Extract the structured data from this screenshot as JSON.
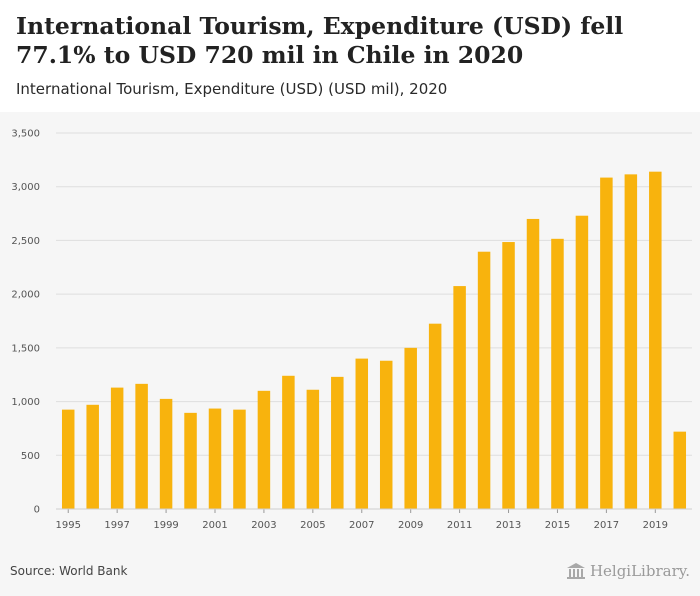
{
  "header": {
    "title": "International Tourism, Expenditure (USD) fell 77.1% to USD 720 mil in Chile in 2020",
    "subtitle": "International Tourism, Expenditure (USD) (USD mil), 2020"
  },
  "footer": {
    "source": "Source: World Bank",
    "logo": "HelgiLibrary."
  },
  "colors": {
    "bar": "#f8b30d",
    "grid": "#dedede",
    "axis_text": "#555555"
  },
  "chart_data": {
    "type": "bar",
    "title": "International Tourism, Expenditure (USD) fell 77.1% to USD 720 mil in Chile in 2020",
    "subtitle": "International Tourism, Expenditure (USD) (USD mil), 2020",
    "xlabel": "",
    "ylabel": "",
    "ylim": [
      0,
      3500
    ],
    "yticks": [
      0,
      500,
      1000,
      1500,
      2000,
      2500,
      3000,
      3500
    ],
    "ytick_labels": [
      "0",
      "500",
      "1,000",
      "1,500",
      "2,000",
      "2,500",
      "3,000",
      "3,500"
    ],
    "grid": true,
    "categories": [
      1995,
      1996,
      1997,
      1998,
      1999,
      2000,
      2001,
      2002,
      2003,
      2004,
      2005,
      2006,
      2007,
      2008,
      2009,
      2010,
      2011,
      2012,
      2013,
      2014,
      2015,
      2016,
      2017,
      2018,
      2019,
      2020
    ],
    "xtick_labels": [
      "1995",
      "",
      "1997",
      "",
      "1999",
      "",
      "2001",
      "",
      "2003",
      "",
      "2005",
      "",
      "2007",
      "",
      "2009",
      "",
      "2011",
      "",
      "2013",
      "",
      "2015",
      "",
      "2017",
      "",
      "2019",
      ""
    ],
    "values": [
      925,
      970,
      1130,
      1165,
      1025,
      895,
      935,
      925,
      1100,
      1240,
      1110,
      1230,
      1400,
      1380,
      1500,
      1725,
      2075,
      2395,
      2485,
      2700,
      2515,
      2730,
      3085,
      3115,
      3140,
      720
    ]
  }
}
